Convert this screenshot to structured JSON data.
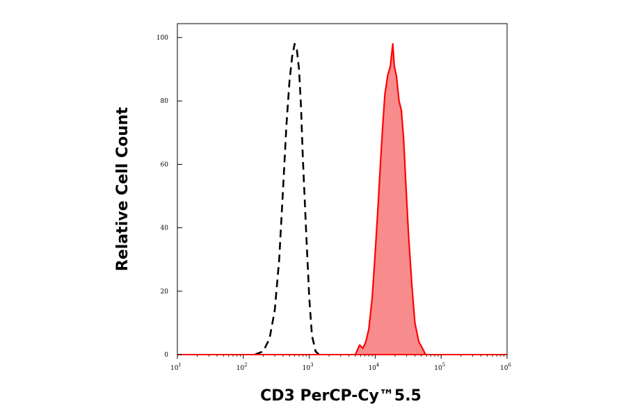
{
  "chart_data": {
    "type": "area",
    "xlabel": "CD3 PerCP-Cy™5.5",
    "ylabel": "Relative Cell Count",
    "x_scale": "log",
    "xlim": [
      10,
      1000000
    ],
    "ylim": [
      0,
      100
    ],
    "x_ticks": [
      {
        "value": 10,
        "base": "10",
        "exp": "1"
      },
      {
        "value": 100,
        "base": "10",
        "exp": "2"
      },
      {
        "value": 1000,
        "base": "10",
        "exp": "3"
      },
      {
        "value": 10000,
        "base": "10",
        "exp": "4"
      },
      {
        "value": 100000,
        "base": "10",
        "exp": "5"
      },
      {
        "value": 1000000,
        "base": "10",
        "exp": "6"
      }
    ],
    "y_ticks": [
      0,
      20,
      40,
      60,
      80,
      100
    ],
    "grid": false,
    "legend": "none",
    "series": [
      {
        "style": "dashed",
        "color": "#000000",
        "filled": false,
        "points": [
          [
            150,
            0
          ],
          [
            200,
            1
          ],
          [
            250,
            5
          ],
          [
            300,
            14
          ],
          [
            350,
            30
          ],
          [
            400,
            52
          ],
          [
            450,
            72
          ],
          [
            500,
            86
          ],
          [
            550,
            94
          ],
          [
            600,
            98
          ],
          [
            650,
            96
          ],
          [
            700,
            90
          ],
          [
            750,
            78
          ],
          [
            800,
            62
          ],
          [
            900,
            38
          ],
          [
            1000,
            18
          ],
          [
            1100,
            6
          ],
          [
            1250,
            1
          ],
          [
            1400,
            0
          ]
        ]
      },
      {
        "style": "solid",
        "color": "#ff0000",
        "fill": "#f88c8c",
        "filled": true,
        "points": [
          [
            5000,
            0
          ],
          [
            5800,
            3
          ],
          [
            6500,
            2
          ],
          [
            7200,
            4
          ],
          [
            8000,
            8
          ],
          [
            9000,
            18
          ],
          [
            10000,
            32
          ],
          [
            11000,
            46
          ],
          [
            12000,
            60
          ],
          [
            13000,
            72
          ],
          [
            14000,
            82
          ],
          [
            15500,
            88
          ],
          [
            17000,
            91
          ],
          [
            18500,
            98
          ],
          [
            19500,
            91
          ],
          [
            21000,
            88
          ],
          [
            23000,
            80
          ],
          [
            25000,
            77
          ],
          [
            27000,
            68
          ],
          [
            29000,
            55
          ],
          [
            32000,
            38
          ],
          [
            36000,
            22
          ],
          [
            40000,
            10
          ],
          [
            46000,
            4
          ],
          [
            52000,
            2
          ],
          [
            58000,
            0
          ]
        ]
      }
    ]
  }
}
